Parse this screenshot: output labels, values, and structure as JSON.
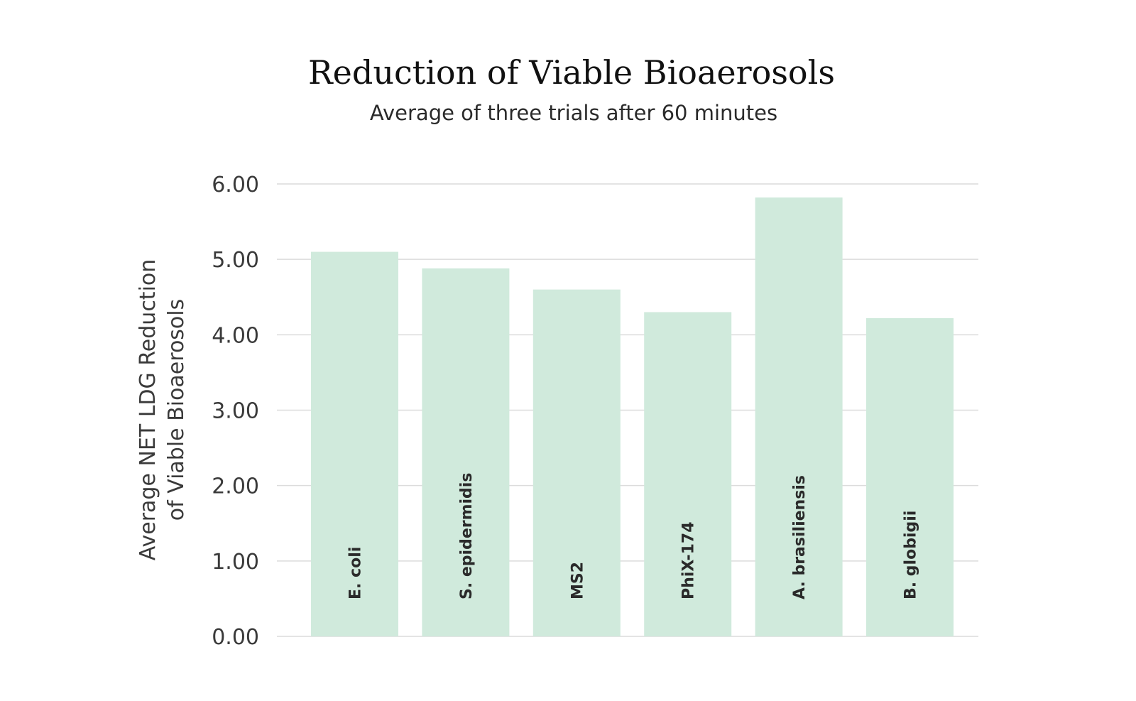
{
  "chart_data": {
    "type": "bar",
    "title": "Reduction of Viable Bioaerosols",
    "subtitle": "Average of three trials after 60 minutes",
    "ylabel_lines": [
      "Average NET LDG Reduction",
      "of Viable Bioaerosols"
    ],
    "xlabel": "",
    "categories": [
      "E. coli",
      "S. epidermidis",
      "MS2",
      "PhiX-174",
      "A. brasiliensis",
      "B. globigii"
    ],
    "values": [
      5.1,
      4.88,
      4.6,
      4.3,
      5.82,
      4.22
    ],
    "ylim": [
      0,
      6
    ],
    "yticks": [
      "0.00",
      "1.00",
      "2.00",
      "3.00",
      "4.00",
      "5.00",
      "6.00"
    ],
    "grid": true,
    "legend": "none",
    "bar_color": "#d0eadc"
  }
}
